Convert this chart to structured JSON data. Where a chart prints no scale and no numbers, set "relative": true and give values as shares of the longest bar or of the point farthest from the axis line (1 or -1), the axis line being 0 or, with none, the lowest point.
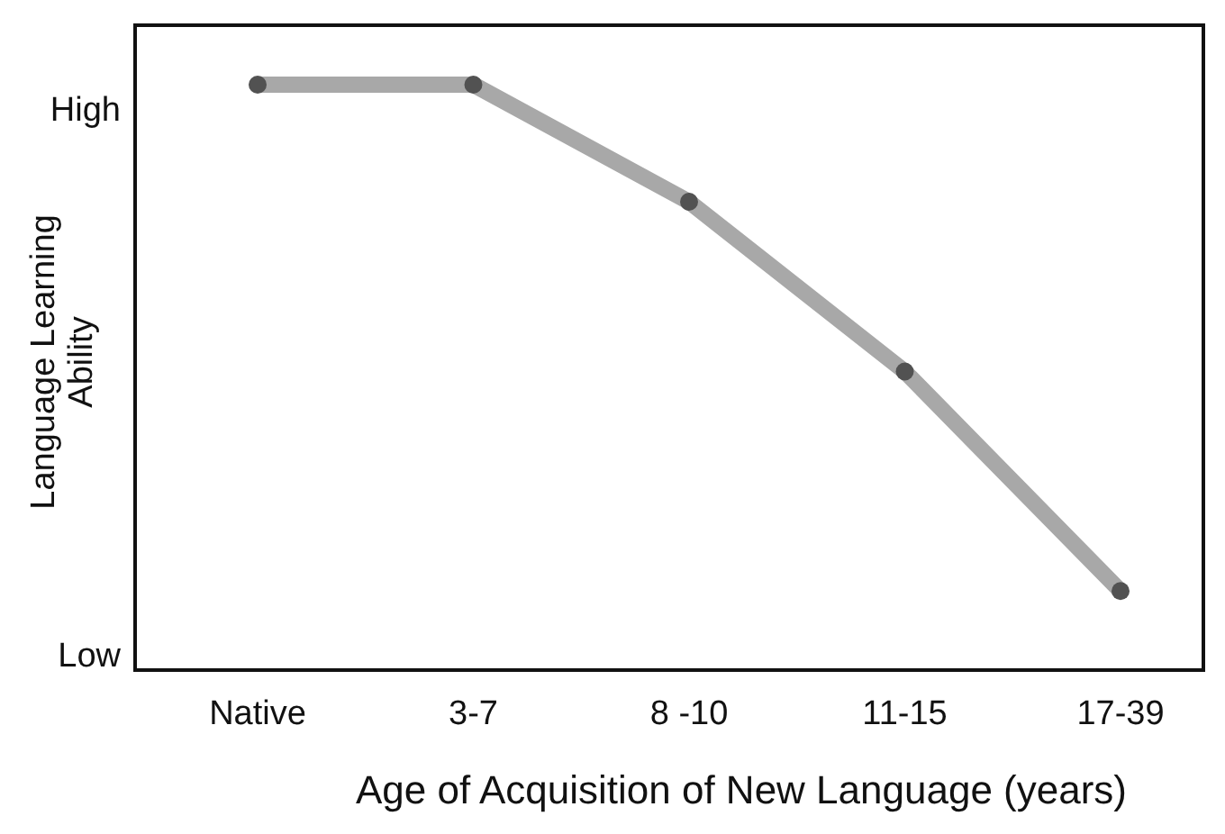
{
  "chart_data": {
    "type": "line",
    "xlabel": "Age of Acquisition of New Language (years)",
    "ylabel": "Language Learning Ability",
    "categories": [
      "Native",
      "3-7",
      "8 -10",
      "11-15",
      "17-39"
    ],
    "series": [
      {
        "color": "#a8a8a8",
        "values": [
          1,
          1,
          0.8,
          0.51,
          0.135
        ]
      }
    ],
    "relative": true,
    "annotations": [
      "High",
      "Low"
    ],
    "marker": "circle",
    "line_style": "solid"
  }
}
